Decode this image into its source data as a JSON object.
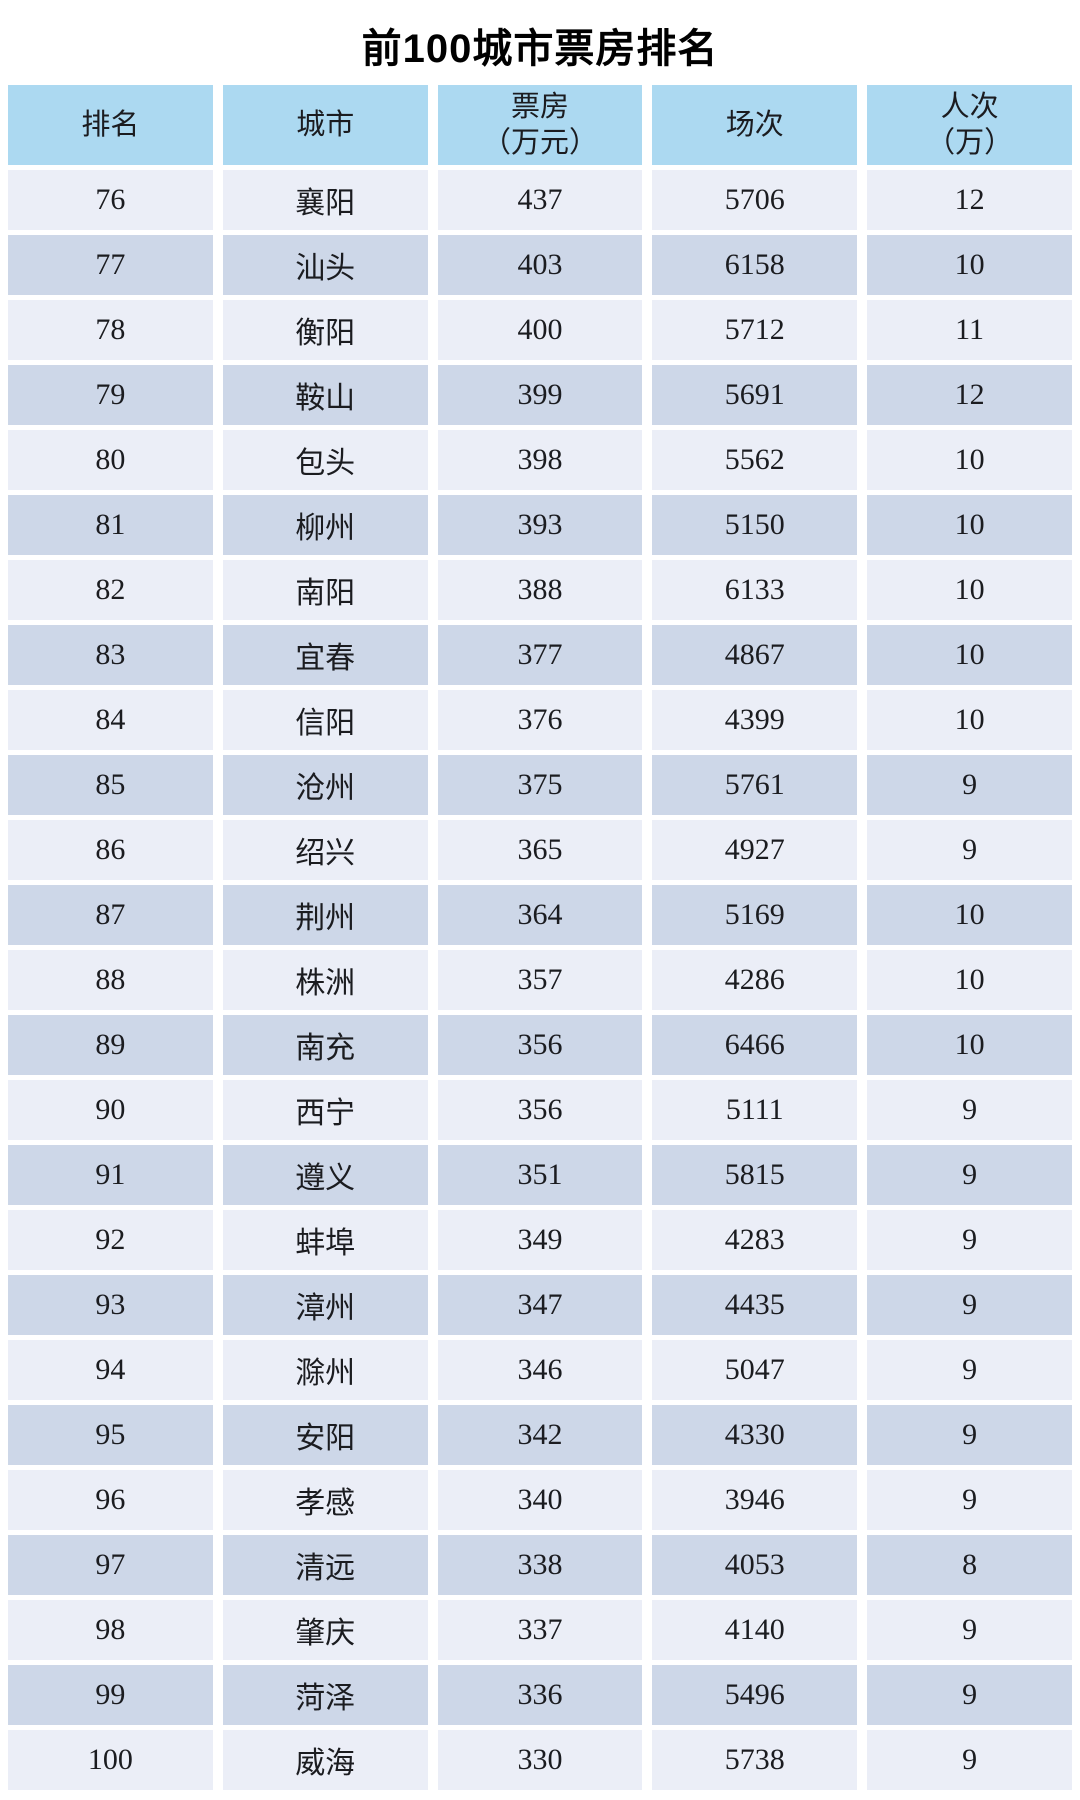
{
  "title": "前100城市票房排名",
  "colors": {
    "header_bg": "#ACD9F1",
    "row_light": "#EBEEF7",
    "row_dark": "#CDD7E8",
    "background": "#FFFFFF",
    "text": "#1B1C20",
    "title_color": "#000000"
  },
  "table": {
    "header_lines": [
      [
        "排名"
      ],
      [
        "城市"
      ],
      [
        "票房",
        "（万元）"
      ],
      [
        "场次"
      ],
      [
        "人次",
        "（万）"
      ]
    ],
    "column_keys": [
      "rank",
      "city",
      "box-office",
      "screenings",
      "admissions"
    ]
  },
  "chart_data": {
    "type": "table",
    "title": "前100城市票房排名",
    "columns": [
      "排名",
      "城市",
      "票房（万元）",
      "场次",
      "人次（万）"
    ],
    "rows": [
      [
        76,
        "襄阳",
        437,
        5706,
        12
      ],
      [
        77,
        "汕头",
        403,
        6158,
        10
      ],
      [
        78,
        "衡阳",
        400,
        5712,
        11
      ],
      [
        79,
        "鞍山",
        399,
        5691,
        12
      ],
      [
        80,
        "包头",
        398,
        5562,
        10
      ],
      [
        81,
        "柳州",
        393,
        5150,
        10
      ],
      [
        82,
        "南阳",
        388,
        6133,
        10
      ],
      [
        83,
        "宜春",
        377,
        4867,
        10
      ],
      [
        84,
        "信阳",
        376,
        4399,
        10
      ],
      [
        85,
        "沧州",
        375,
        5761,
        9
      ],
      [
        86,
        "绍兴",
        365,
        4927,
        9
      ],
      [
        87,
        "荆州",
        364,
        5169,
        10
      ],
      [
        88,
        "株洲",
        357,
        4286,
        10
      ],
      [
        89,
        "南充",
        356,
        6466,
        10
      ],
      [
        90,
        "西宁",
        356,
        5111,
        9
      ],
      [
        91,
        "遵义",
        351,
        5815,
        9
      ],
      [
        92,
        "蚌埠",
        349,
        4283,
        9
      ],
      [
        93,
        "漳州",
        347,
        4435,
        9
      ],
      [
        94,
        "滁州",
        346,
        5047,
        9
      ],
      [
        95,
        "安阳",
        342,
        4330,
        9
      ],
      [
        96,
        "孝感",
        340,
        3946,
        9
      ],
      [
        97,
        "清远",
        338,
        4053,
        8
      ],
      [
        98,
        "肇庆",
        337,
        4140,
        9
      ],
      [
        99,
        "菏泽",
        336,
        5496,
        9
      ],
      [
        100,
        "威海",
        330,
        5738,
        9
      ]
    ]
  }
}
